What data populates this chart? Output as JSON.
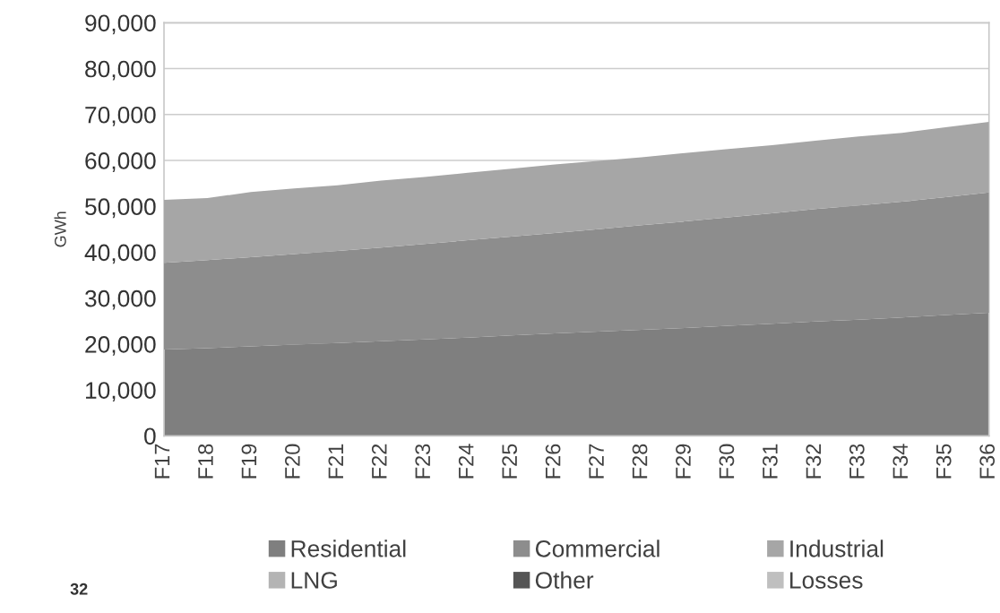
{
  "chart_data": {
    "type": "area",
    "stacked": true,
    "ylabel": "GWh",
    "categories": [
      "F17",
      "F18",
      "F19",
      "F20",
      "F21",
      "F22",
      "F23",
      "F24",
      "F25",
      "F26",
      "F27",
      "F28",
      "F29",
      "F30",
      "F31",
      "F32",
      "F33",
      "F34",
      "F35",
      "F36"
    ],
    "series": [
      {
        "name": "Residential",
        "color": "#7f7f7f",
        "values": [
          18800,
          19100,
          19500,
          19900,
          20200,
          20600,
          21000,
          21400,
          21900,
          22300,
          22700,
          23100,
          23500,
          24000,
          24400,
          24900,
          25300,
          25800,
          26300,
          26800
        ]
      },
      {
        "name": "Commercial",
        "color": "#8d8d8d",
        "values": [
          18900,
          19200,
          19400,
          19700,
          20100,
          20400,
          20800,
          21200,
          21500,
          21900,
          22300,
          22800,
          23200,
          23600,
          24100,
          24500,
          24900,
          25200,
          25700,
          26200
        ]
      },
      {
        "name": "Industrial",
        "color": "#a6a6a6",
        "values": [
          13700,
          13500,
          14200,
          14300,
          14300,
          14600,
          14600,
          14700,
          14800,
          14900,
          14900,
          14800,
          14900,
          14900,
          14800,
          14900,
          15000,
          15000,
          15200,
          15400
        ]
      },
      {
        "name": "LNG",
        "color": "#b4b4b4",
        "values": [
          null,
          null,
          null,
          null,
          null,
          null,
          null,
          null,
          null,
          null,
          null,
          null,
          null,
          null,
          null,
          null,
          null,
          null,
          null,
          null
        ]
      },
      {
        "name": "Other",
        "color": "#555555",
        "values": [
          null,
          null,
          null,
          null,
          null,
          null,
          null,
          null,
          null,
          null,
          null,
          null,
          null,
          null,
          null,
          null,
          null,
          null,
          null,
          null
        ]
      },
      {
        "name": "Losses",
        "color": "#bfbfbf",
        "values": [
          null,
          null,
          null,
          null,
          null,
          null,
          null,
          null,
          null,
          null,
          null,
          null,
          null,
          null,
          null,
          null,
          null,
          null,
          null,
          null
        ]
      }
    ],
    "ylim": [
      0,
      90000
    ],
    "yticks": [
      {
        "value": 0,
        "label": "0"
      },
      {
        "value": 10000,
        "label": "10,000"
      },
      {
        "value": 20000,
        "label": "20,000"
      },
      {
        "value": 30000,
        "label": "30,000"
      },
      {
        "value": 40000,
        "label": "40,000"
      },
      {
        "value": 50000,
        "label": "50,000"
      },
      {
        "value": 60000,
        "label": "60,000"
      },
      {
        "value": 70000,
        "label": "70,000"
      },
      {
        "value": 80000,
        "label": "80,000"
      },
      {
        "value": 90000,
        "label": "90,000"
      }
    ],
    "grid": "y",
    "legend": "bottom",
    "annotations": [
      "32"
    ]
  }
}
